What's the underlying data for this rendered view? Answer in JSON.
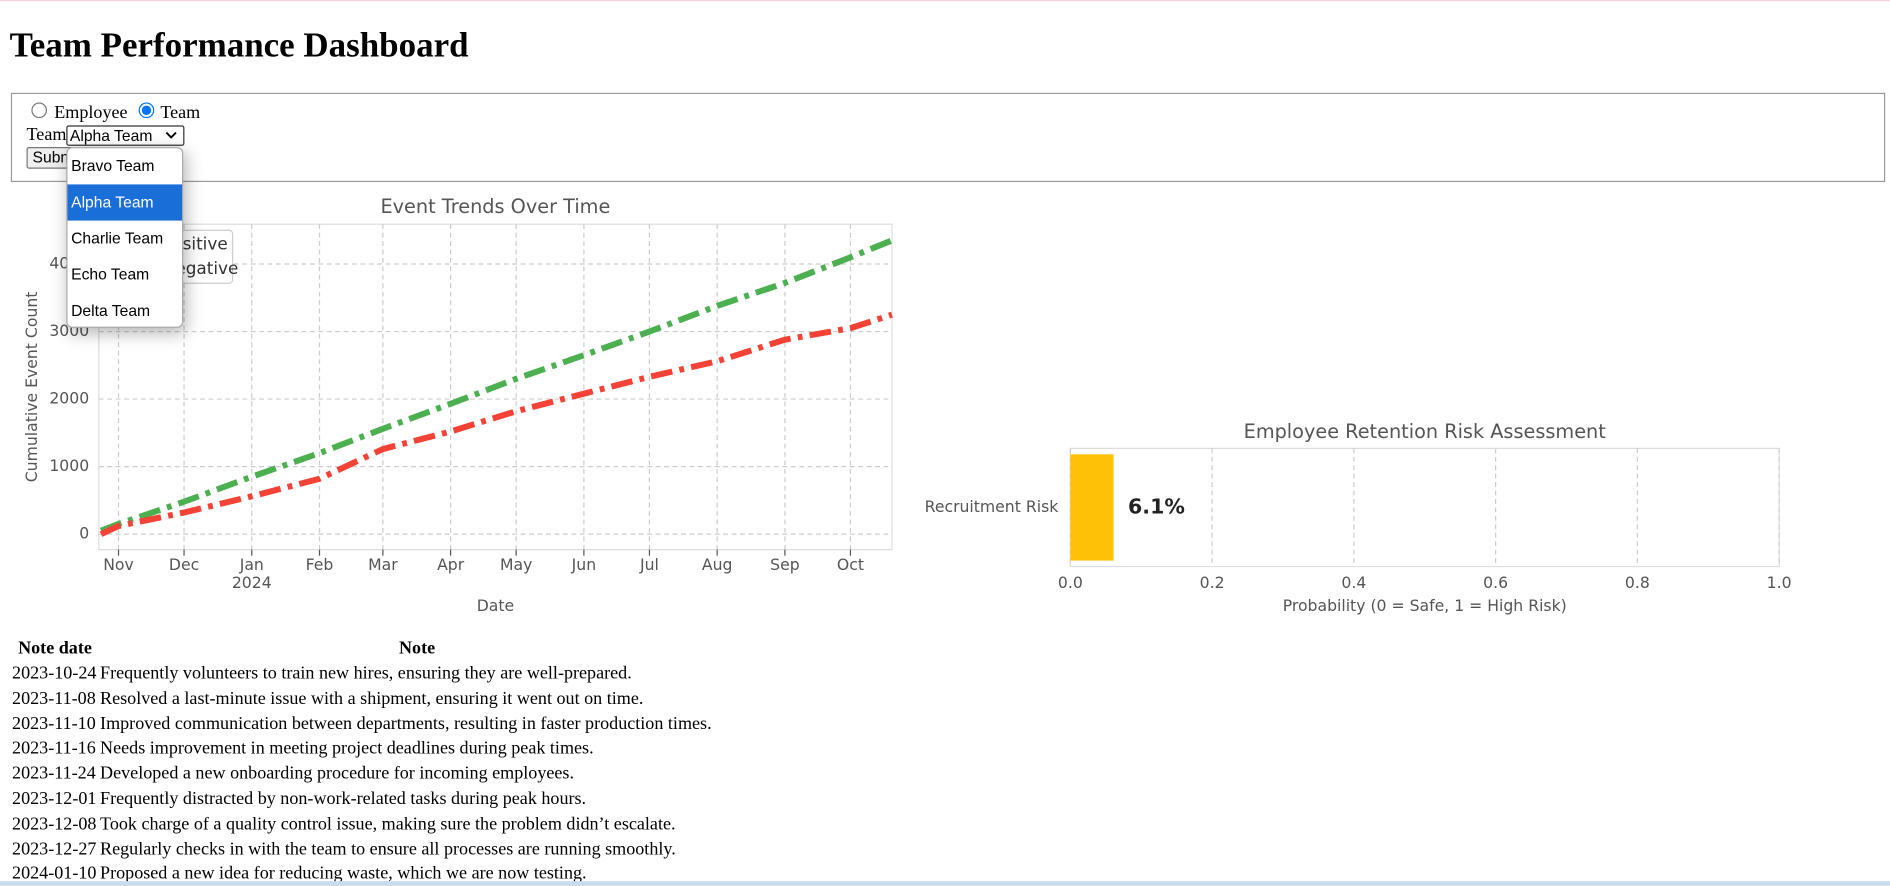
{
  "header": {
    "title": "Team Performance Dashboard"
  },
  "form": {
    "view_options": [
      "Employee",
      "Team"
    ],
    "selected_view": "Team",
    "team_label": "Team",
    "selected_team": "Alpha Team",
    "team_options": [
      "Bravo Team",
      "Alpha Team",
      "Charlie Team",
      "Echo Team",
      "Delta Team"
    ],
    "submit": "Submit"
  },
  "chart_data": [
    {
      "type": "line",
      "title": "Event Trends Over Time",
      "x_label": "Date",
      "y_label": "Cumulative Event Count",
      "x": [
        "2023-10-24",
        "2023-11-01",
        "2023-12-01",
        "2024-01-01",
        "2024-02-01",
        "2024-03-01",
        "2024-04-01",
        "2024-05-01",
        "2024-06-01",
        "2024-07-01",
        "2024-08-01",
        "2024-09-01",
        "2024-10-01",
        "2024-10-20"
      ],
      "series": [
        {
          "name": "Positive",
          "color": "#4caf50",
          "values": [
            50,
            150,
            480,
            850,
            1200,
            1560,
            1930,
            2300,
            2650,
            3000,
            3380,
            3720,
            4100,
            4350
          ]
        },
        {
          "name": "Negative",
          "color": "#f44336",
          "values": [
            0,
            120,
            320,
            560,
            820,
            1260,
            1520,
            1820,
            2080,
            2330,
            2560,
            2880,
            3050,
            3250
          ]
        }
      ],
      "xlim": [
        "2023-10-23",
        "2024-10-20"
      ],
      "ylim": [
        -230,
        4590
      ],
      "yticks": [
        0,
        1000,
        2000,
        3000,
        4000
      ],
      "xticks": [
        {
          "value": "2023-11-01",
          "label": "Nov"
        },
        {
          "value": "2023-12-01",
          "label": "Dec"
        },
        {
          "value": "2024-01-01",
          "label": "Jan"
        },
        {
          "value": "2024-02-01",
          "label": "Feb"
        },
        {
          "value": "2024-03-01",
          "label": "Mar"
        },
        {
          "value": "2024-04-01",
          "label": "Apr"
        },
        {
          "value": "2024-05-01",
          "label": "May"
        },
        {
          "value": "2024-06-01",
          "label": "Jun"
        },
        {
          "value": "2024-07-01",
          "label": "Jul"
        },
        {
          "value": "2024-08-01",
          "label": "Aug"
        },
        {
          "value": "2024-09-01",
          "label": "Sep"
        },
        {
          "value": "2024-10-01",
          "label": "Oct"
        }
      ],
      "xtick_year": {
        "value": "2024-01-01",
        "label": "2024"
      },
      "grid": true,
      "legend": "upper left",
      "line_style": "dashdot"
    },
    {
      "type": "barh",
      "title": "Employee Retention Risk Assessment",
      "x_label": "Probability (0 = Safe, 1 = High Risk)",
      "categories": [
        "Recruitment Risk"
      ],
      "values": [
        0.061
      ],
      "value_labels": [
        "6.1%"
      ],
      "color": "#ffc107",
      "xlim": [
        0,
        1
      ],
      "xticks": [
        {
          "value": 0,
          "label": "0.0"
        },
        0.2,
        0.4,
        0.6,
        0.8,
        {
          "value": 1,
          "label": "1.0"
        }
      ],
      "grid": true
    }
  ],
  "table": {
    "columns": [
      "Note date",
      "Note"
    ],
    "rows": [
      [
        "2023-10-24",
        "Frequently volunteers to train new hires, ensuring they are well-prepared."
      ],
      [
        "2023-11-08",
        "Resolved a last-minute issue with a shipment, ensuring it went out on time."
      ],
      [
        "2023-11-10",
        "Improved communication between departments, resulting in faster production times."
      ],
      [
        "2023-11-16",
        "Needs improvement in meeting project deadlines during peak times."
      ],
      [
        "2023-11-24",
        "Developed a new onboarding procedure for incoming employees."
      ],
      [
        "2023-12-01",
        "Frequently distracted by non-work-related tasks during peak hours."
      ],
      [
        "2023-12-08",
        "Took charge of a quality control issue, making sure the problem didn’t escalate."
      ],
      [
        "2023-12-27",
        "Regularly checks in with the team to ensure all processes are running smoothly."
      ],
      [
        "2024-01-10",
        "Proposed a new idea for reducing waste, which we are now testing."
      ]
    ]
  }
}
